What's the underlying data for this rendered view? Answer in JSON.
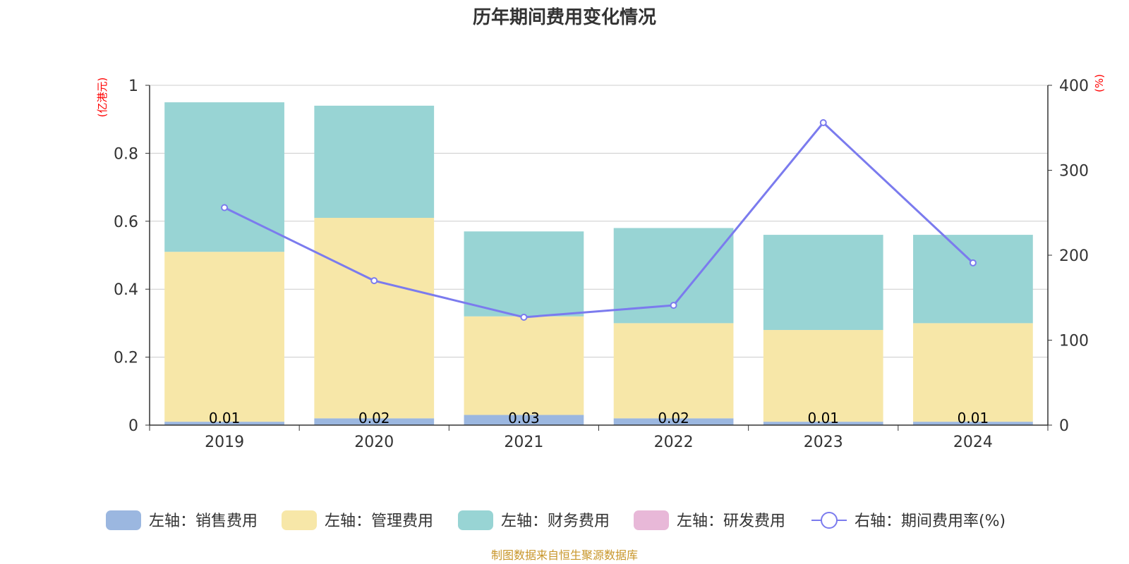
{
  "chart_data": {
    "type": "bar",
    "stacked": true,
    "title": "历年期间费用变化情况",
    "left_axis_unit": "(亿港元)",
    "right_axis_unit": "(%)",
    "categories": [
      "2019",
      "2020",
      "2021",
      "2022",
      "2023",
      "2024"
    ],
    "left_ylim": [
      0,
      1
    ],
    "left_yticks": [
      "0",
      "0.2",
      "0.4",
      "0.6",
      "0.8",
      "1"
    ],
    "right_ylim": [
      0,
      400
    ],
    "right_yticks": [
      "0",
      "100",
      "200",
      "300",
      "400"
    ],
    "grid": true,
    "legend_position": "bottom",
    "series": [
      {
        "name": "左轴：销售费用",
        "axis": "left",
        "color": "#9bb7e0",
        "values": [
          0.01,
          0.02,
          0.03,
          0.02,
          0.01,
          0.01
        ],
        "labels": [
          "0.01",
          "0.02",
          "0.03",
          "0.02",
          "0.01",
          "0.01"
        ]
      },
      {
        "name": "左轴：管理费用",
        "axis": "left",
        "color": "#f7e7a8",
        "values": [
          0.5,
          0.59,
          0.29,
          0.28,
          0.27,
          0.29
        ]
      },
      {
        "name": "左轴：财务费用",
        "axis": "left",
        "color": "#98d4d4",
        "values": [
          0.44,
          0.33,
          0.25,
          0.28,
          0.28,
          0.26
        ]
      },
      {
        "name": "左轴：研发费用",
        "axis": "left",
        "color": "#e8b8d8",
        "values": [
          0,
          0,
          0,
          0,
          0,
          0
        ]
      },
      {
        "name": "右轴：期间费用率(%)",
        "axis": "right",
        "type": "line",
        "color": "#7b7bee",
        "values": [
          256,
          170,
          127,
          141,
          356,
          191
        ]
      }
    ],
    "source": "制图数据来自恒生聚源数据库"
  }
}
